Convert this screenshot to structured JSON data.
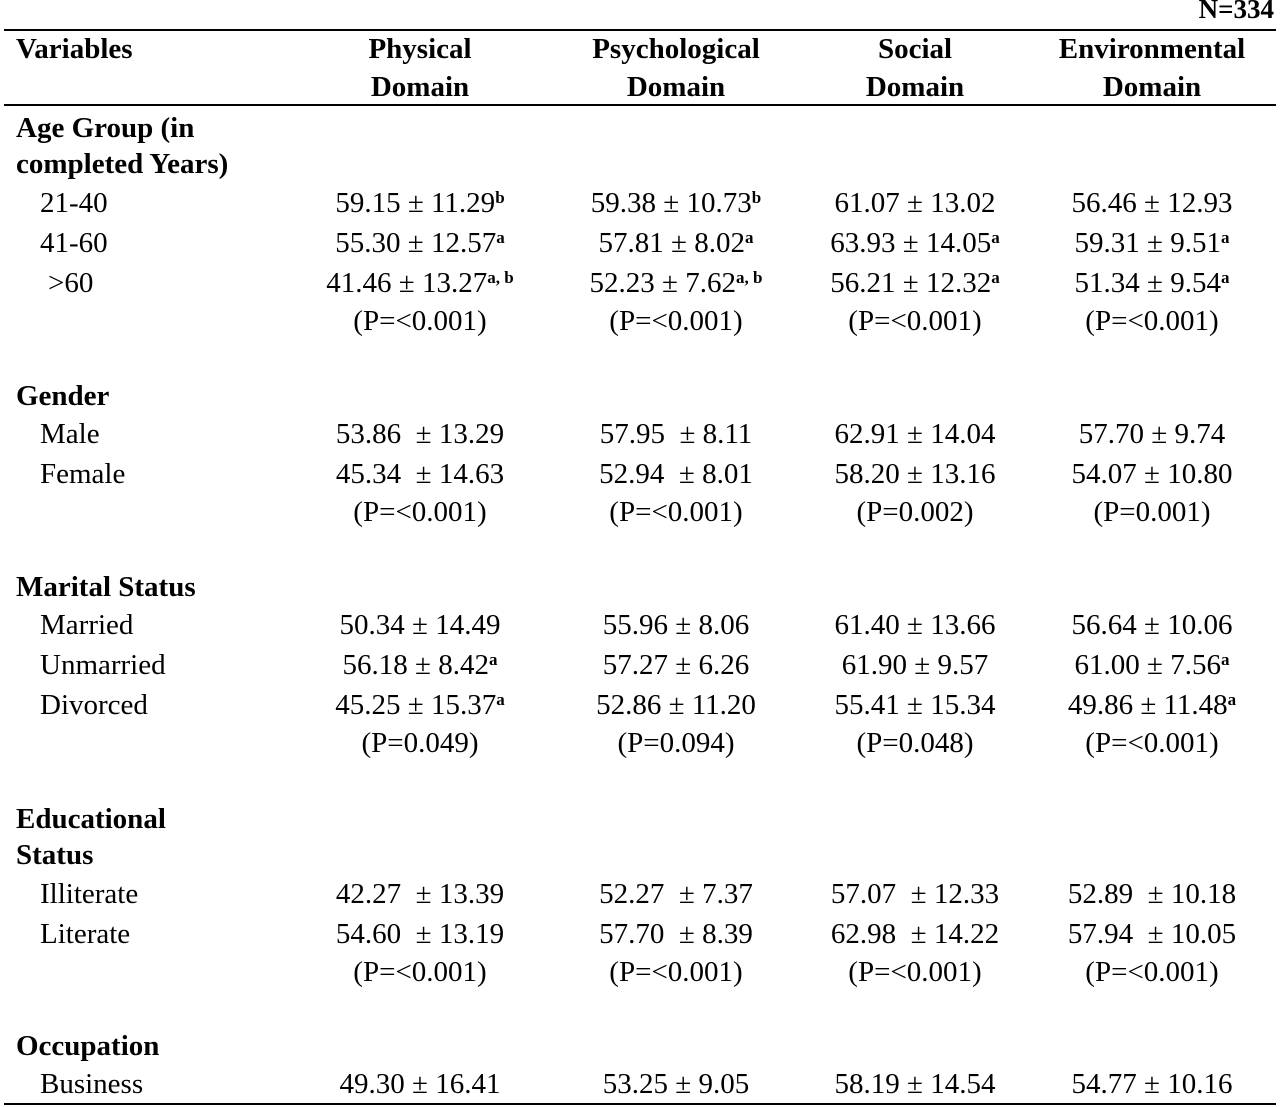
{
  "n_label": "N=334",
  "header": {
    "variables": "Variables",
    "col1_a": "Physical",
    "col1_b": "Domain",
    "col2_a": "Psychological",
    "col2_b": "Domain",
    "col3_a": "Social",
    "col3_b": "Domain",
    "col4_a": "Environmental",
    "col4_b": "Domain"
  },
  "age": {
    "title_1": "Age Group (in",
    "title_2": "completed Years)",
    "rows": [
      {
        "label": "21-40",
        "v1": "59.15 ± 11.29",
        "s1": "b",
        "v2": "59.38 ± 10.73",
        "s2": "b",
        "v3": "61.07 ± 13.02",
        "s3": "",
        "v4": "56.46 ± 12.93",
        "s4": ""
      },
      {
        "label": "41-60",
        "v1": "55.30 ± 12.57",
        "s1": "a",
        "v2": "57.81 ± 8.02",
        "s2": "a",
        "v3": "63.93 ± 14.05",
        "s3": "a",
        "v4": "59.31 ± 9.51",
        "s4": "a"
      },
      {
        "label": ">60",
        "v1": "41.46 ± 13.27",
        "s1": "a, b",
        "v2": "52.23 ± 7.62",
        "s2": "a, b",
        "v3": "56.21 ± 12.32",
        "s3": "a",
        "v4": "51.34 ± 9.54",
        "s4": "a"
      }
    ],
    "p": [
      "(P=<0.001)",
      "(P=<0.001)",
      "(P=<0.001)",
      "(P=<0.001)"
    ]
  },
  "gender": {
    "title": "Gender",
    "rows": [
      {
        "label": "Male",
        "v1": "53.86  ± 13.29",
        "v2": "57.95  ± 8.11",
        "v3": "62.91 ± 14.04",
        "v4": "57.70 ± 9.74"
      },
      {
        "label": "Female",
        "v1": "45.34  ± 14.63",
        "v2": "52.94  ± 8.01",
        "v3": "58.20 ± 13.16",
        "v4": "54.07 ± 10.80"
      }
    ],
    "p": [
      "(P=<0.001)",
      "(P=<0.001)",
      "(P=0.002)",
      "(P=0.001)"
    ]
  },
  "marital": {
    "title": "Marital Status",
    "rows": [
      {
        "label": "Married",
        "v1": "50.34 ± 14.49",
        "s1": "",
        "v2": "55.96 ± 8.06",
        "v3": "61.40 ± 13.66",
        "v4": "56.64 ± 10.06",
        "s4": ""
      },
      {
        "label": "Unmarried",
        "v1": "56.18 ± 8.42",
        "s1": "a",
        "v2": "57.27 ± 6.26",
        "v3": "61.90 ± 9.57",
        "v4": "61.00 ± 7.56",
        "s4": "a"
      },
      {
        "label": "Divorced",
        "v1": "45.25 ± 15.37",
        "s1": "a",
        "v2": "52.86 ± 11.20",
        "v3": "55.41 ± 15.34",
        "v4": "49.86 ± 11.48",
        "s4": "a"
      }
    ],
    "p": [
      "(P=0.049)",
      "(P=0.094)",
      "(P=0.048)",
      "(P=<0.001)"
    ]
  },
  "education": {
    "title_1": "Educational",
    "title_2": "Status",
    "rows": [
      {
        "label": "Illiterate",
        "v1": "42.27  ± 13.39",
        "v2": "52.27  ± 7.37",
        "v3": "57.07  ± 12.33",
        "v4": "52.89  ± 10.18"
      },
      {
        "label": "Literate",
        "v1": "54.60  ± 13.19",
        "v2": "57.70  ± 8.39",
        "v3": "62.98  ± 14.22",
        "v4": "57.94  ± 10.05"
      }
    ],
    "p": [
      "(P=<0.001)",
      "(P=<0.001)",
      "(P=<0.001)",
      "(P=<0.001)"
    ]
  },
  "occupation": {
    "title": "Occupation",
    "rows": [
      {
        "label": "Business",
        "v1": "49.30 ± 16.41",
        "v2": "53.25 ± 9.05",
        "v3": "58.19 ± 14.54",
        "v4": "54.77 ± 10.16"
      }
    ]
  }
}
